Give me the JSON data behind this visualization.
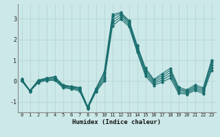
{
  "xlabel": "Humidex (Indice chaleur)",
  "xlim": [
    -0.5,
    23.5
  ],
  "ylim": [
    -1.5,
    3.7
  ],
  "yticks": [
    -1,
    0,
    1,
    2,
    3
  ],
  "xticks": [
    0,
    1,
    2,
    3,
    4,
    5,
    6,
    7,
    8,
    9,
    10,
    11,
    12,
    13,
    14,
    15,
    16,
    17,
    18,
    19,
    20,
    21,
    22,
    23
  ],
  "background_color": "#cce8e8",
  "grid_color": "#b8d8d8",
  "line_color": "#1a6e6e",
  "series": [
    [
      0.1,
      -0.45,
      0.05,
      0.15,
      0.22,
      -0.18,
      -0.25,
      -0.3,
      -1.22,
      -0.35,
      0.45,
      3.2,
      3.3,
      2.92,
      1.72,
      0.63,
      0.08,
      0.35,
      0.62,
      -0.28,
      -0.42,
      -0.18,
      -0.32,
      1.0
    ],
    [
      0.08,
      -0.45,
      0.03,
      0.13,
      0.18,
      -0.2,
      -0.27,
      -0.33,
      -1.25,
      -0.38,
      0.35,
      3.1,
      3.25,
      2.85,
      1.65,
      0.55,
      0.03,
      0.25,
      0.52,
      -0.35,
      -0.48,
      -0.25,
      -0.38,
      0.9
    ],
    [
      0.05,
      -0.47,
      0.0,
      0.1,
      0.12,
      -0.23,
      -0.3,
      -0.37,
      -1.28,
      -0.42,
      0.22,
      2.95,
      3.18,
      2.78,
      1.55,
      0.45,
      -0.05,
      0.15,
      0.4,
      -0.42,
      -0.52,
      -0.32,
      -0.45,
      0.78
    ],
    [
      0.02,
      -0.48,
      -0.03,
      0.07,
      0.08,
      -0.27,
      -0.33,
      -0.42,
      -1.3,
      -0.47,
      0.1,
      2.8,
      3.08,
      2.7,
      1.45,
      0.35,
      -0.12,
      0.05,
      0.28,
      -0.5,
      -0.58,
      -0.38,
      -0.52,
      0.65
    ],
    [
      0.0,
      -0.5,
      -0.07,
      0.03,
      0.04,
      -0.32,
      -0.38,
      -0.47,
      -1.33,
      -0.52,
      0.0,
      2.65,
      2.98,
      2.62,
      1.38,
      0.25,
      -0.2,
      -0.05,
      0.15,
      -0.58,
      -0.63,
      -0.45,
      -0.6,
      0.52
    ]
  ]
}
